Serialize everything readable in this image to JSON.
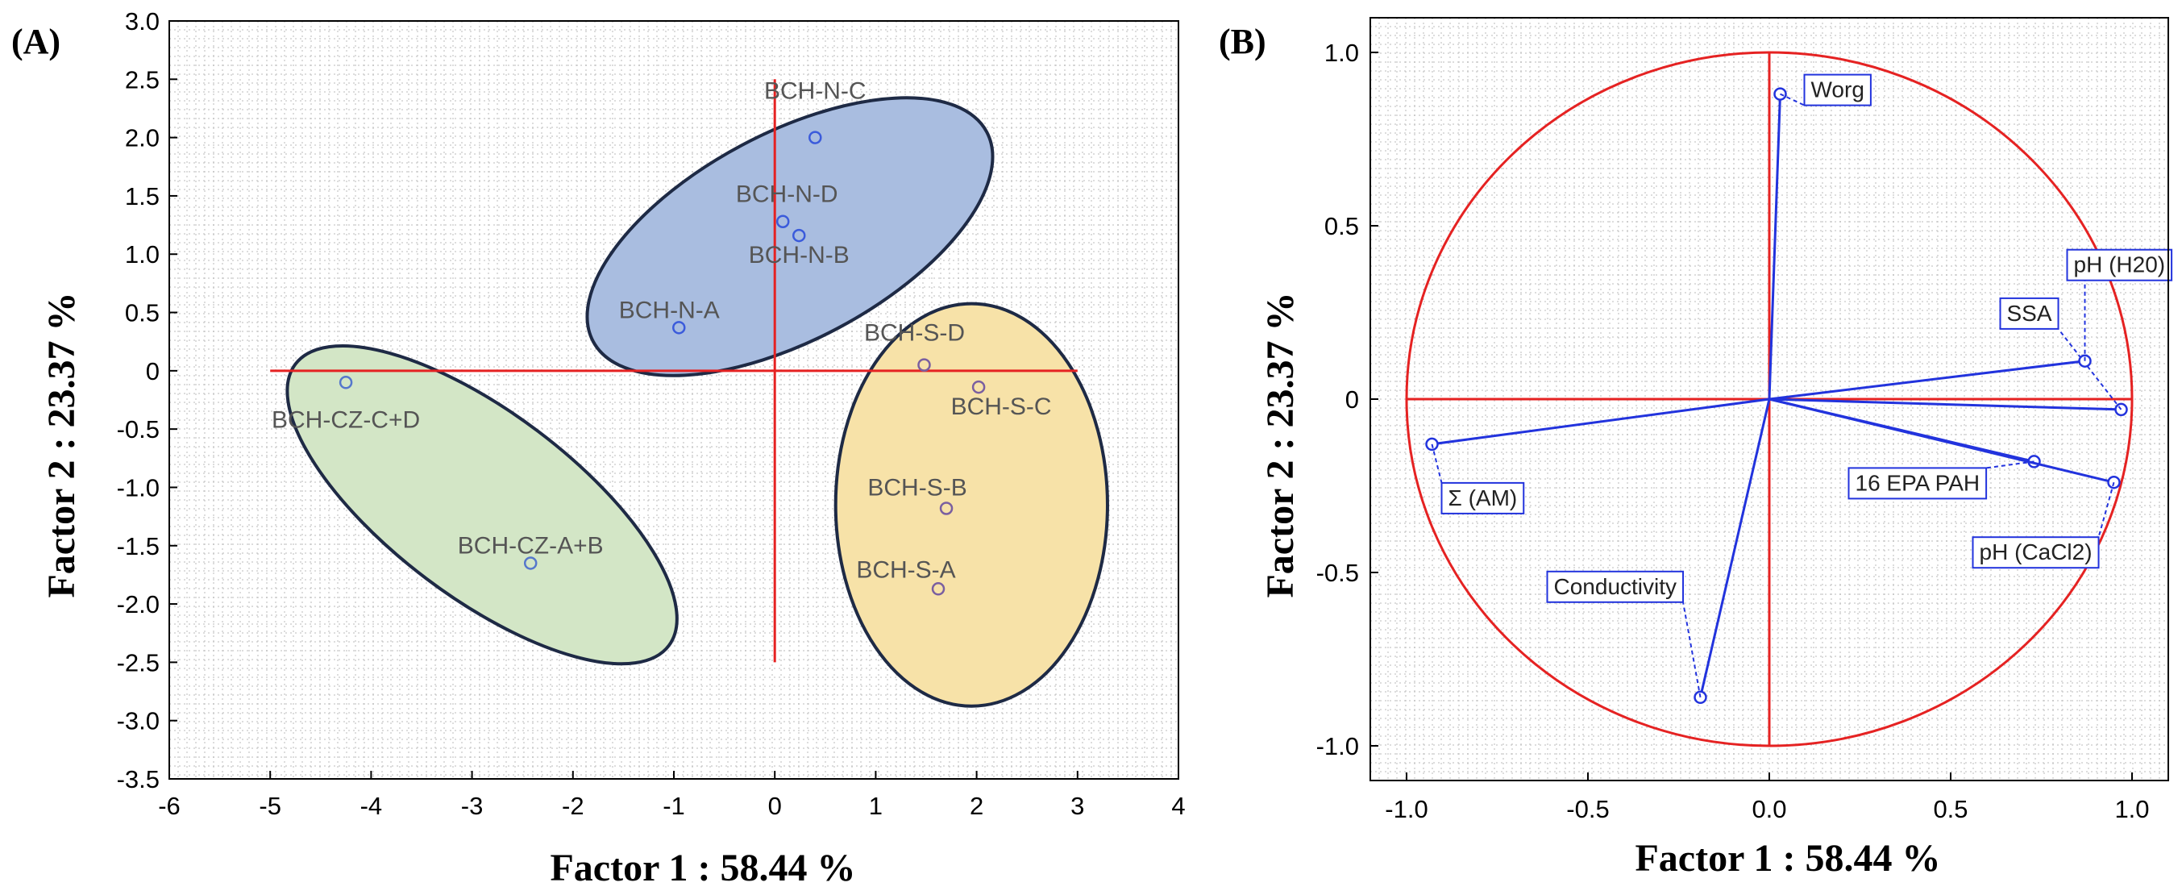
{
  "chart_data": [
    {
      "type": "scatter",
      "panel_label": "(A)",
      "xlabel": "Factor 1 : 58.44 %",
      "ylabel": "Factor 2 : 23.37 %",
      "xlim": [
        -6,
        4
      ],
      "ylim": [
        -3.5,
        3.0
      ],
      "xticks": [
        -6,
        -5,
        -4,
        -3,
        -2,
        -1,
        0,
        1,
        2,
        3,
        4
      ],
      "yticks": [
        3.0,
        2.5,
        2.0,
        1.5,
        1.0,
        0.5,
        0,
        -0.5,
        -1.0,
        -1.5,
        -2.0,
        -2.5,
        -3.0,
        -3.5
      ],
      "ytick_labels": [
        "3.0",
        "2.5",
        "2.0",
        "1.5",
        "1.0",
        "0.5",
        "0",
        "-0.5",
        "-1.0",
        "-1.5",
        "-2.0",
        "-2.5",
        "-3.0",
        "-3.5"
      ],
      "grid": true,
      "axis_lines": {
        "x_from": -5,
        "x_to": 3,
        "y_from": -2.5,
        "y_to": 2.5
      },
      "groups": [
        {
          "name": "BCH-N",
          "color": "#a9bde0",
          "center": [
            0.15,
            1.15
          ],
          "rx": 2.05,
          "ry": 0.95,
          "angle_deg": 28
        },
        {
          "name": "BCH-S",
          "color": "#f7e2a8",
          "center": [
            1.95,
            -1.15
          ],
          "rx": 1.25,
          "ry": 1.85,
          "angle_deg": 0
        },
        {
          "name": "BCH-CZ",
          "color": "#d3e6c6",
          "center": [
            -2.9,
            -1.15
          ],
          "rx": 2.15,
          "ry": 0.85,
          "angle_deg": -37
        }
      ],
      "points": [
        {
          "label": "BCH-N-C",
          "x": 0.4,
          "y": 2.0,
          "color": "#3b5bdb"
        },
        {
          "label": "BCH-N-D",
          "x": 0.08,
          "y": 1.28,
          "color": "#3b5bdb"
        },
        {
          "label": "BCH-N-B",
          "x": 0.24,
          "y": 1.16,
          "color": "#3b5bdb"
        },
        {
          "label": "BCH-N-A",
          "x": -0.95,
          "y": 0.37,
          "color": "#3b5bdb"
        },
        {
          "label": "BCH-S-D",
          "x": 1.48,
          "y": 0.05,
          "color": "#7a5fa0"
        },
        {
          "label": "BCH-S-C",
          "x": 2.02,
          "y": -0.14,
          "color": "#7a5fa0"
        },
        {
          "label": "BCH-S-B",
          "x": 1.7,
          "y": -1.18,
          "color": "#7a5fa0"
        },
        {
          "label": "BCH-S-A",
          "x": 1.62,
          "y": -1.87,
          "color": "#7a5fa0"
        },
        {
          "label": "BCH-CZ-C+D",
          "x": -4.25,
          "y": -0.1,
          "color": "#5577cc"
        },
        {
          "label": "BCH-CZ-A+B",
          "x": -2.42,
          "y": -1.65,
          "color": "#5577cc"
        }
      ]
    },
    {
      "type": "scatter",
      "panel_label": "(B)",
      "xlabel": "Factor 1 : 58.44 %",
      "ylabel": "Factor 2 : 23.37 %",
      "xlim": [
        -1.1,
        1.1
      ],
      "ylim": [
        -1.1,
        1.1
      ],
      "xticks": [
        -1.0,
        -0.5,
        0.0,
        0.5,
        1.0
      ],
      "xtick_labels": [
        "-1.0",
        "-0.5",
        "0.0",
        "0.5",
        "1.0"
      ],
      "yticks": [
        1.0,
        0.5,
        0,
        -0.5,
        -1.0
      ],
      "ytick_labels": [
        "1.0",
        "0.5",
        "0",
        "-0.5",
        "-1.0"
      ],
      "grid": true,
      "unit_circle": true,
      "variables": [
        {
          "label": "Worg",
          "x": 0.03,
          "y": 0.88
        },
        {
          "label": "SSA",
          "x": 0.97,
          "y": -0.03
        },
        {
          "label": "pH (H20)",
          "x": 0.87,
          "y": 0.11
        },
        {
          "label": "16 EPA PAH",
          "x": 0.73,
          "y": -0.18
        },
        {
          "label": "pH (CaCl2)",
          "x": 0.95,
          "y": -0.24
        },
        {
          "label": "Σ (AM)",
          "x": -0.93,
          "y": -0.13
        },
        {
          "label": "Conductivity",
          "x": -0.19,
          "y": -0.86
        }
      ]
    }
  ]
}
